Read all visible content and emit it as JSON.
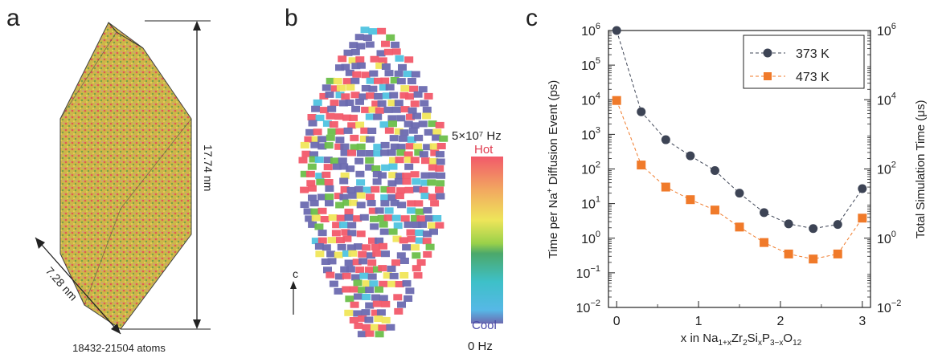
{
  "panel_a": {
    "letter": "a",
    "height_label": "17.74 nm",
    "width_label": "7.28 nm",
    "atoms_label": "18432-21504 atoms"
  },
  "panel_b": {
    "letter": "b",
    "colorbar_max": "5×10⁷ Hz",
    "colorbar_hot": "Hot",
    "colorbar_cool": "Cool",
    "colorbar_min": "0 Hz",
    "axis_label": "c",
    "colors": {
      "hot": "#f25a6a",
      "cool": "#6c6ab0",
      "mid_green": "#6cbf4a",
      "yellow": "#f0e65a",
      "cyan": "#4fc3e0"
    }
  },
  "panel_c": {
    "letter": "c"
  },
  "chart_data": {
    "type": "line",
    "x": [
      0,
      0.3,
      0.6,
      0.9,
      1.2,
      1.5,
      1.8,
      2.1,
      2.4,
      2.7,
      3.0
    ],
    "series": [
      {
        "name": "373 K",
        "color": "#3d4455",
        "marker": "circle",
        "values": [
          1000000,
          4500,
          700,
          240,
          90,
          20,
          5.5,
          2.6,
          1.9,
          2.5,
          27
        ]
      },
      {
        "name": "473 K",
        "color": "#f07a2a",
        "marker": "square",
        "values": [
          9500,
          130,
          30,
          13,
          6.5,
          2.1,
          0.75,
          0.35,
          0.25,
          0.35,
          3.8
        ]
      }
    ],
    "xlabel_parts": {
      "pre": "x in Na",
      "s1": "1+x",
      "a": "Zr",
      "s2": "2",
      "b": "Si",
      "s3": "x",
      "c": "P",
      "s4": "3−x",
      "d": "O",
      "s5": "12"
    },
    "ylabel_parts": {
      "pre": "Time per Na",
      "sup": "+",
      "post": " Diffusion Event (ps)"
    },
    "y2label": "Total Simulation Time (μs)",
    "xlim": [
      -0.1,
      3.1
    ],
    "ylim": [
      0.01,
      1000000
    ],
    "yscale": "log",
    "xticks": [
      "0",
      "1",
      "2",
      "3"
    ],
    "ytick_exponents": [
      "6",
      "5",
      "4",
      "3",
      "2",
      "1",
      "0",
      "−1",
      "−2"
    ],
    "y2tick_exponents": [
      "6",
      "4",
      "2",
      "0",
      "−2"
    ],
    "legend_position": "top-right"
  }
}
